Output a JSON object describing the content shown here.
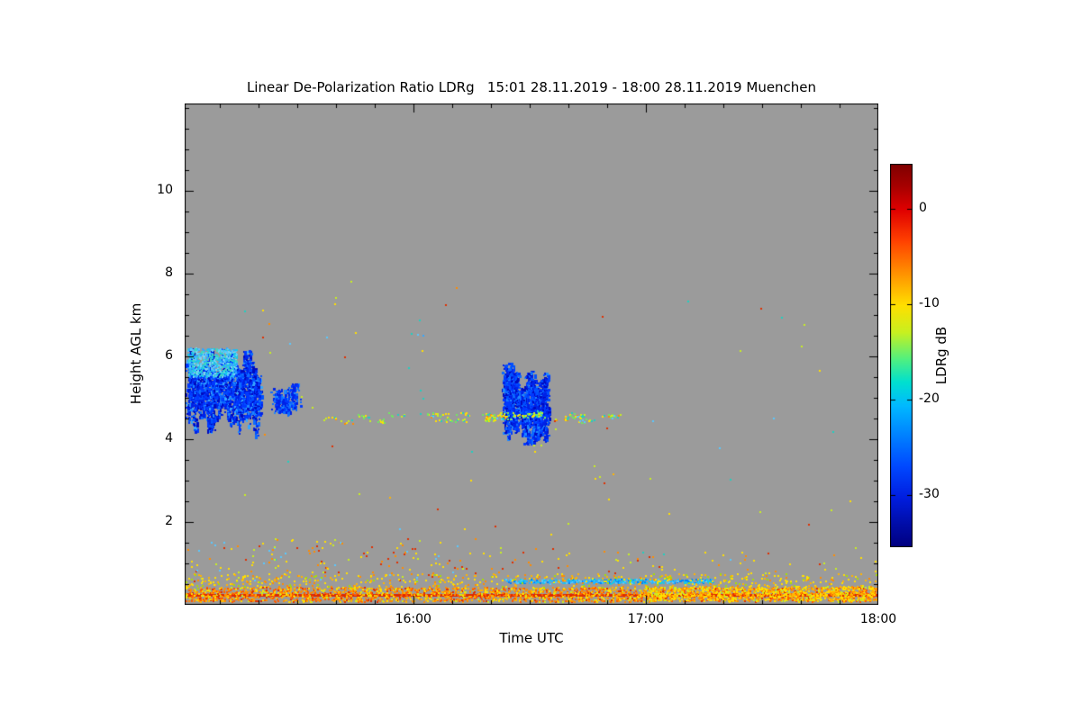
{
  "chart_data": {
    "type": "heatmap",
    "title": "Linear De-Polarization Ratio LDRg   15:01 28.11.2019 - 18:00 28.11.2019 Muenchen",
    "xlabel": "Time UTC",
    "ylabel": "Height AGL km",
    "colorbar_label": "LDRg dB",
    "background_color": "#9b9b9b",
    "frame_color": "#000000",
    "x_axis": {
      "min": 15.0167,
      "max": 18.0,
      "major_ticks": [
        {
          "value": 16.0,
          "label": "16:00"
        },
        {
          "value": 17.0,
          "label": "17:00"
        },
        {
          "value": 18.0,
          "label": "18:00"
        }
      ],
      "minor_tick_interval": 0.166667
    },
    "y_axis": {
      "min": 0,
      "max": 12.1,
      "major_ticks": [
        {
          "value": 2,
          "label": "2"
        },
        {
          "value": 4,
          "label": "4"
        },
        {
          "value": 6,
          "label": "6"
        },
        {
          "value": 8,
          "label": "8"
        },
        {
          "value": 10,
          "label": "10"
        }
      ],
      "minor_tick_interval": 0.5
    },
    "colorbar": {
      "vmax": 4.7,
      "vmin": -35.5,
      "ticks": [
        {
          "value": 0,
          "label": "0"
        },
        {
          "value": -10,
          "label": "-10"
        },
        {
          "value": -20,
          "label": "-20"
        },
        {
          "value": -30,
          "label": "-30"
        }
      ],
      "gradient_stops": [
        [
          0.0,
          "#7f0000"
        ],
        [
          0.06,
          "#a80000"
        ],
        [
          0.12,
          "#e00000"
        ],
        [
          0.2,
          "#ff4000"
        ],
        [
          0.28,
          "#ff8c00"
        ],
        [
          0.37,
          "#ffe000"
        ],
        [
          0.44,
          "#c8f020"
        ],
        [
          0.51,
          "#50f080"
        ],
        [
          0.57,
          "#00e0d0"
        ],
        [
          0.63,
          "#00baff"
        ],
        [
          0.71,
          "#0080ff"
        ],
        [
          0.79,
          "#0048ff"
        ],
        [
          0.87,
          "#001ee0"
        ],
        [
          0.94,
          "#000da8"
        ],
        [
          1.0,
          "#000080"
        ]
      ]
    },
    "features": [
      {
        "kind": "streak_cloud",
        "name": "cloud-band-1505",
        "t0": 15.03,
        "t1": 15.34,
        "h_top": [
          5.5,
          6.2
        ],
        "h_bot": [
          4.0,
          4.9
        ],
        "streaks": 26,
        "points_per_streak": 95,
        "size": 2,
        "palette": [
          "#000bbf",
          "#0022e6",
          "#0038ff",
          "#0050ff",
          "#0d6bff",
          "#1e88ff",
          "#35a6ff"
        ],
        "weights": [
          3,
          4,
          4,
          3,
          2,
          1,
          1
        ]
      },
      {
        "kind": "speckle_area",
        "name": "cloud-top-cyan-cap",
        "t0": 15.03,
        "t1": 15.24,
        "h0": 5.5,
        "h1": 6.2,
        "count": 650,
        "size": 2,
        "palette": [
          "#18c8e8",
          "#35a6ff",
          "#40d8c0",
          "#7fd4f0",
          "#58c8ff"
        ],
        "weights": [
          3,
          3,
          2,
          2,
          2
        ]
      },
      {
        "kind": "streak_cloud",
        "name": "cloud-wisp-1525",
        "t0": 15.4,
        "t1": 15.5,
        "h_top": [
          5.0,
          5.4
        ],
        "h_bot": [
          4.5,
          4.8
        ],
        "streaks": 4,
        "points_per_streak": 60,
        "size": 2,
        "palette": [
          "#0022e6",
          "#0038ff",
          "#0d6bff",
          "#1e88ff"
        ],
        "weights": [
          3,
          3,
          2,
          1
        ]
      },
      {
        "kind": "streak_cloud",
        "name": "cloud-1625-left",
        "t0": 16.39,
        "t1": 16.45,
        "h_top": [
          5.6,
          5.95
        ],
        "h_bot": [
          3.9,
          4.4
        ],
        "streaks": 5,
        "points_per_streak": 130,
        "size": 2,
        "palette": [
          "#000bbf",
          "#0022e6",
          "#0038ff",
          "#0050ff",
          "#0d6bff",
          "#1e88ff"
        ],
        "weights": [
          3,
          4,
          4,
          3,
          2,
          1
        ]
      },
      {
        "kind": "streak_cloud",
        "name": "cloud-1630-right",
        "t0": 16.46,
        "t1": 16.58,
        "h_top": [
          5.2,
          5.65
        ],
        "h_bot": [
          3.8,
          4.4
        ],
        "streaks": 9,
        "points_per_streak": 130,
        "size": 2,
        "palette": [
          "#000bbf",
          "#0022e6",
          "#0038ff",
          "#0050ff",
          "#0d6bff",
          "#1e88ff"
        ],
        "weights": [
          3,
          4,
          4,
          3,
          2,
          1
        ]
      },
      {
        "kind": "speckle_area",
        "name": "melting-layer-row-4p5km",
        "t0": 15.58,
        "t1": 16.88,
        "h0": 4.42,
        "h1": 4.62,
        "count": 260,
        "size": 2,
        "clusters": 26,
        "palette": [
          "#ffe000",
          "#c8f020",
          "#70e860",
          "#20d0c0",
          "#ff8c00",
          "#58c8ff"
        ],
        "weights": [
          4,
          3,
          3,
          2,
          1,
          1
        ]
      },
      {
        "kind": "speckle_area",
        "name": "sparse-sky-noise",
        "t0": 15.05,
        "t1": 17.95,
        "h0": 1.0,
        "h1": 7.8,
        "count": 60,
        "size": 2,
        "palette": [
          "#ffe000",
          "#e03000",
          "#20d0c0",
          "#c8f020",
          "#58c8ff",
          "#ff8c00"
        ],
        "weights": [
          3,
          2,
          2,
          2,
          1,
          1
        ]
      },
      {
        "kind": "speckle_area",
        "name": "boundary-layer-specks-left",
        "t0": 15.03,
        "t1": 16.3,
        "h0": 0.55,
        "h1": 1.6,
        "count": 160,
        "size": 2,
        "palette": [
          "#ffe000",
          "#ff8c00",
          "#e03000",
          "#c8f020",
          "#58c8ff"
        ],
        "weights": [
          3,
          2,
          2,
          1,
          1
        ]
      },
      {
        "kind": "speckle_area",
        "name": "boundary-layer-specks-right",
        "t0": 16.3,
        "t1": 18.0,
        "h0": 0.55,
        "h1": 1.4,
        "count": 80,
        "size": 2,
        "palette": [
          "#ffe000",
          "#ff8c00",
          "#e03000",
          "#c8f020"
        ],
        "weights": [
          3,
          2,
          1,
          1
        ]
      },
      {
        "kind": "speckle_area",
        "name": "cyan-aerosol-line",
        "t0": 16.39,
        "t1": 17.29,
        "h0": 0.52,
        "h1": 0.62,
        "count": 420,
        "size": 2,
        "palette": [
          "#28b4ff",
          "#18c8e8",
          "#58c8ff",
          "#0080ff"
        ],
        "weights": [
          3,
          3,
          2,
          2
        ]
      },
      {
        "kind": "solid_row",
        "name": "surface-clutter-line",
        "t0": 15.02,
        "t1": 18.0,
        "h": 0.22,
        "thickness_km": 0.07,
        "color": "#dd2800"
      },
      {
        "kind": "speckle_area",
        "name": "surface-clutter-speckle",
        "t0": 15.02,
        "t1": 18.0,
        "h0": 0.08,
        "h1": 0.42,
        "count": 2600,
        "size": 2,
        "palette": [
          "#ff5a00",
          "#ff8c00",
          "#ffb400",
          "#ffe000",
          "#e03000",
          "#c8f020"
        ],
        "weights": [
          4,
          4,
          3,
          3,
          2,
          1
        ]
      },
      {
        "kind": "speckle_area",
        "name": "surface-upper-speckle",
        "t0": 15.02,
        "t1": 18.0,
        "h0": 0.4,
        "h1": 0.75,
        "count": 500,
        "size": 2,
        "palette": [
          "#ffe000",
          "#ffb400",
          "#a8e000",
          "#ff8c00"
        ],
        "weights": [
          3,
          2,
          1,
          1
        ]
      },
      {
        "kind": "speckle_area",
        "name": "surface-yellow-right",
        "t0": 17.0,
        "t1": 18.0,
        "h0": 0.1,
        "h1": 0.45,
        "count": 700,
        "size": 2,
        "palette": [
          "#ffe000",
          "#ffb400",
          "#ff8c00",
          "#c8f020"
        ],
        "weights": [
          4,
          3,
          2,
          1
        ]
      },
      {
        "kind": "dots",
        "name": "isolated-specks",
        "points": [
          [
            16.14,
            7.25,
            "#e03000"
          ],
          [
            15.99,
            6.55,
            "#20d0c0"
          ],
          [
            16.02,
            6.52,
            "#58c8ff"
          ],
          [
            16.04,
            6.5,
            "#35a6ff"
          ],
          [
            15.47,
            6.3,
            "#58c8ff"
          ],
          [
            16.78,
            3.05,
            "#ffe000"
          ],
          [
            16.82,
            2.95,
            "#e03000"
          ],
          [
            16.86,
            3.15,
            "#ffb400"
          ],
          [
            16.8,
            3.1,
            "#c8f020"
          ],
          [
            16.52,
            3.7,
            "#ffe000"
          ],
          [
            16.55,
            3.85,
            "#c8f020"
          ],
          [
            17.1,
            2.2,
            "#ffe000"
          ],
          [
            15.9,
            2.6,
            "#ffb400"
          ],
          [
            16.35,
            1.9,
            "#e03000"
          ],
          [
            17.55,
            4.5,
            "#58c8ff"
          ],
          [
            15.73,
            7.8,
            "#c8f020"
          ]
        ]
      }
    ]
  }
}
